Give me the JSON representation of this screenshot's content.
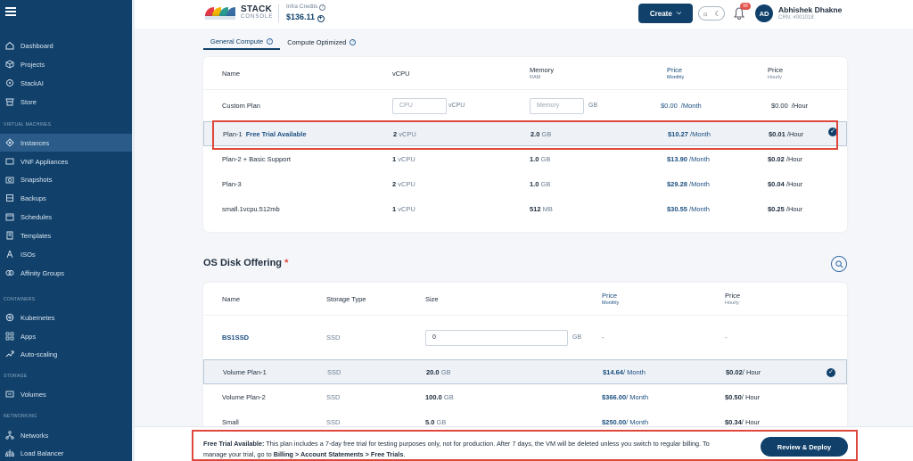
{
  "sidebar": {
    "items": [
      {
        "label": "Dashboard",
        "icon": "home-icon"
      },
      {
        "label": "Projects",
        "icon": "cube-icon"
      },
      {
        "label": "StackAI",
        "icon": "ai-icon"
      },
      {
        "label": "Store",
        "icon": "store-icon"
      },
      {
        "label": "Instances",
        "icon": "instances-icon"
      },
      {
        "label": "VNF Appliances",
        "icon": "vnf-icon"
      },
      {
        "label": "Snapshots",
        "icon": "snapshot-icon"
      },
      {
        "label": "Backups",
        "icon": "backup-icon"
      },
      {
        "label": "Schedules",
        "icon": "schedule-icon"
      },
      {
        "label": "Templates",
        "icon": "template-icon"
      },
      {
        "label": "ISOs",
        "icon": "iso-icon"
      },
      {
        "label": "Affinity Groups",
        "icon": "affinity-icon"
      },
      {
        "label": "Kubernetes",
        "icon": "kubernetes-icon"
      },
      {
        "label": "Apps",
        "icon": "apps-icon"
      },
      {
        "label": "Auto-scaling",
        "icon": "autoscale-icon"
      },
      {
        "label": "Volumes",
        "icon": "volume-icon"
      },
      {
        "label": "Networks",
        "icon": "network-icon"
      },
      {
        "label": "Load Balancer",
        "icon": "loadbalancer-icon"
      }
    ],
    "sections": {
      "virtual_machines": "VIRTUAL MACHINES",
      "containers": "CONTAINERS",
      "storage": "STORAGE",
      "networking": "NETWORKING"
    }
  },
  "header": {
    "logo_primary": "STACK",
    "logo_secondary": "CONSOLE",
    "credits_label": "Infra Credits",
    "credits_value": "$136.11",
    "create_label": "Create",
    "notification_count": "99",
    "avatar_initials": "AD",
    "user_name": "Abhishek Dhakne",
    "user_crn": "CRN: #001018"
  },
  "tabs": [
    {
      "label": "General Compute",
      "active": true
    },
    {
      "label": "Compute Optimized",
      "active": false
    }
  ],
  "compute": {
    "headers": {
      "name": "Name",
      "vcpu": "vCPU",
      "memory": "Memory",
      "memory_sub": "RAM",
      "price_monthly": "Price",
      "price_monthly_sub": "Monthly",
      "price_hourly": "Price",
      "price_hourly_sub": "Hourly"
    },
    "custom": {
      "name": "Custom Plan",
      "cpu_placeholder": "CPU",
      "cpu_unit": "vCPU",
      "memory_placeholder": "Memory",
      "memory_unit": "GB",
      "monthly_value": "$0.00",
      "monthly_unit": "/Month",
      "hourly_value": "$0.00",
      "hourly_unit": "/Hour"
    },
    "plans": [
      {
        "name": "Plan-1",
        "badge": "Free Trial Available",
        "vcpu_num": "2",
        "vcpu_unit": "vCPU",
        "mem_num": "2.0",
        "mem_unit": "GB",
        "monthly": "$10.27",
        "monthly_unit": "/Month",
        "hourly": "$0.01",
        "hourly_unit": "/Hour",
        "selected": true
      },
      {
        "name": "Plan-2 + Basic Support",
        "badge": "",
        "vcpu_num": "1",
        "vcpu_unit": "vCPU",
        "mem_num": "1.0",
        "mem_unit": "GB",
        "monthly": "$13.90",
        "monthly_unit": "/Month",
        "hourly": "$0.02",
        "hourly_unit": "/Hour",
        "selected": false
      },
      {
        "name": "Plan-3",
        "badge": "",
        "vcpu_num": "2",
        "vcpu_unit": "vCPU",
        "mem_num": "1.0",
        "mem_unit": "GB",
        "monthly": "$29.28",
        "monthly_unit": "/Month",
        "hourly": "$0.04",
        "hourly_unit": "/Hour",
        "selected": false
      },
      {
        "name": "small.1vcpu.512mb",
        "badge": "",
        "vcpu_num": "1",
        "vcpu_unit": "vCPU",
        "mem_num": "512",
        "mem_unit": "MB",
        "monthly": "$30.55",
        "monthly_unit": "/Month",
        "hourly": "$0.25",
        "hourly_unit": "/Hour",
        "selected": false
      }
    ]
  },
  "disk": {
    "title": "OS Disk Offering",
    "required_mark": "*",
    "headers": {
      "name": "Name",
      "storage_type": "Storage Type",
      "size": "Size",
      "price_monthly": "Price",
      "price_monthly_sub": "Monthly",
      "price_hourly": "Price",
      "price_hourly_sub": "Hourly"
    },
    "custom": {
      "name": "BS1SSD",
      "storage_type": "SSD",
      "size_value": "0",
      "size_unit": "GB",
      "monthly": "-",
      "hourly": "-"
    },
    "plans": [
      {
        "name": "Volume Plan-1",
        "storage_type": "SSD",
        "size_num": "20.0",
        "size_unit": "GB",
        "monthly": "$14.64",
        "monthly_unit": "/ Month",
        "hourly": "$0.02",
        "hourly_unit": "/ Hour",
        "selected": true
      },
      {
        "name": "Volume Plan-2",
        "storage_type": "SSD",
        "size_num": "100.0",
        "size_unit": "GB",
        "monthly": "$366.00",
        "monthly_unit": "/ Month",
        "hourly": "$0.50",
        "hourly_unit": "/ Hour",
        "selected": false
      },
      {
        "name": "Small",
        "storage_type": "SSD",
        "size_num": "5.0",
        "size_unit": "GB",
        "monthly": "$250.00",
        "monthly_unit": "/ Month",
        "hourly": "$0.34",
        "hourly_unit": "/ Hour",
        "selected": false
      }
    ]
  },
  "footer": {
    "notice_title": "Free Trial Available:",
    "notice_body": " This plan includes a 7-day free trial for testing purposes only, not for production. After 7 days, the VM will be deleted unless you switch to regular billing. To manage your trial, go to ",
    "notice_path": "Billing > Account Statements > Free Trials",
    "notice_end": ".",
    "review_label": "Review & Deploy"
  }
}
